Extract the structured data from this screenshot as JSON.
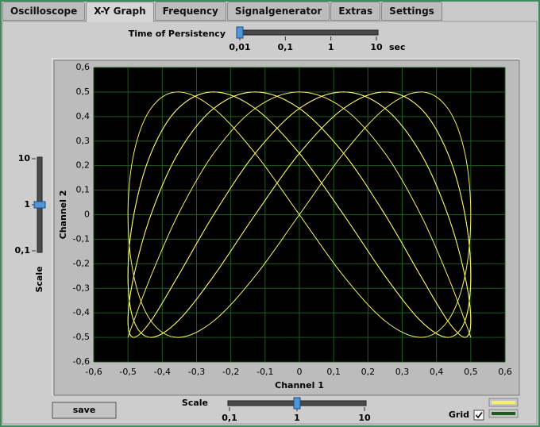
{
  "tabs": [
    {
      "label": "Oscilloscope",
      "selected": false
    },
    {
      "label": "X-Y Graph",
      "selected": true
    },
    {
      "label": "Frequency",
      "selected": false
    },
    {
      "label": "Signalgenerator",
      "selected": false
    },
    {
      "label": "Extras",
      "selected": false
    },
    {
      "label": "Settings",
      "selected": false
    }
  ],
  "persistency": {
    "label": "Time of Persistency",
    "unit": "sec",
    "value": 0.01,
    "min": 0.01,
    "max": 10,
    "log": true,
    "ticks": [
      {
        "value": 0.01,
        "label": "0,01"
      },
      {
        "value": 0.1,
        "label": "0,1"
      },
      1,
      10
    ]
  },
  "y_scale": {
    "label": "Scale",
    "value": 1,
    "min": 0.1,
    "max": 10,
    "log": true,
    "ticks": [
      10,
      1,
      {
        "value": 0.1,
        "label": "0,1"
      }
    ]
  },
  "x_scale": {
    "label": "Scale",
    "value": 1,
    "min": 0.1,
    "max": 10,
    "log": true,
    "ticks": [
      {
        "value": 0.1,
        "label": "0,1"
      },
      1,
      10
    ]
  },
  "save_button": "save",
  "grid_toggle": {
    "label": "Grid",
    "checked": true
  },
  "chart_data": {
    "type": "line",
    "x_label": "Channel 1",
    "y_label": "Channel 2",
    "color": "#f4f06a",
    "grid": true,
    "grid_color": "#1f5a1f",
    "background": "#000000",
    "xlim": [
      -0.6,
      0.6
    ],
    "ylim": [
      -0.6,
      0.6
    ],
    "xticks": [
      {
        "value": -0.6,
        "label": "-0,6"
      },
      {
        "value": -0.5,
        "label": "-0,5"
      },
      {
        "value": -0.4,
        "label": "-0,4"
      },
      {
        "value": -0.3,
        "label": "-0,3"
      },
      {
        "value": -0.2,
        "label": "-0,2"
      },
      {
        "value": -0.1,
        "label": "-0,1"
      },
      0,
      {
        "value": 0.1,
        "label": "0,1"
      },
      {
        "value": 0.2,
        "label": "0,2"
      },
      {
        "value": 0.3,
        "label": "0,3"
      },
      {
        "value": 0.4,
        "label": "0,4"
      },
      {
        "value": 0.5,
        "label": "0,5"
      },
      {
        "value": 0.6,
        "label": "0,6"
      }
    ],
    "yticks": [
      {
        "value": -0.6,
        "label": "-0,6"
      },
      {
        "value": -0.5,
        "label": "-0,5"
      },
      {
        "value": -0.4,
        "label": "-0,4"
      },
      {
        "value": -0.3,
        "label": "-0,3"
      },
      {
        "value": -0.2,
        "label": "-0,2"
      },
      {
        "value": -0.1,
        "label": "-0,1"
      },
      0,
      {
        "value": 0.1,
        "label": "0,1"
      },
      {
        "value": 0.2,
        "label": "0,2"
      },
      {
        "value": 0.3,
        "label": "0,3"
      },
      {
        "value": 0.4,
        "label": "0,4"
      },
      {
        "value": 0.5,
        "label": "0,5"
      },
      {
        "value": 0.6,
        "label": "0,6"
      }
    ],
    "x": [
      0,
      0.129,
      0.25,
      0.354,
      0.433,
      0.483,
      0.5,
      0.483,
      0.433,
      0.354,
      0.25,
      0.129,
      0,
      -0.129,
      -0.25,
      -0.354,
      -0.433,
      -0.483,
      -0.5,
      -0.483,
      -0.433,
      -0.354,
      -0.25,
      -0.129
    ],
    "series": [
      {
        "values": [
          0,
          0.25,
          0.433,
          0.5,
          0.433,
          0.25,
          0,
          -0.25,
          -0.433,
          -0.5,
          -0.433,
          -0.25,
          0,
          0.25,
          0.433,
          0.5,
          0.433,
          0.25,
          0,
          -0.25,
          -0.433,
          -0.5,
          -0.433,
          -0.25
        ]
      },
      {
        "values": [
          0.25,
          0.433,
          0.5,
          0.433,
          0.25,
          0,
          -0.25,
          -0.433,
          -0.5,
          -0.433,
          -0.25,
          0,
          0.25,
          0.433,
          0.5,
          0.433,
          0.25,
          0,
          -0.25,
          -0.433,
          -0.5,
          -0.433,
          -0.25,
          0
        ]
      },
      {
        "values": [
          0.433,
          0.5,
          0.433,
          0.25,
          0,
          -0.25,
          -0.433,
          -0.5,
          -0.433,
          -0.25,
          0,
          0.25,
          0.433,
          0.5,
          0.433,
          0.25,
          0,
          -0.25,
          -0.433,
          -0.5,
          -0.433,
          -0.25,
          0,
          0.25
        ]
      },
      {
        "values": [
          0.5,
          0.433,
          0.25,
          0,
          -0.25,
          -0.433,
          -0.5,
          -0.433,
          -0.25,
          0,
          0.25,
          0.433,
          0.5,
          0.433,
          0.25,
          0,
          -0.25,
          -0.433,
          -0.5,
          -0.433,
          -0.25,
          0,
          0.25,
          0.433
        ]
      },
      {
        "values": [
          0.433,
          0.25,
          0,
          -0.25,
          -0.433,
          -0.5,
          -0.433,
          -0.25,
          0,
          0.25,
          0.433,
          0.5,
          0.433,
          0.25,
          0,
          -0.25,
          -0.433,
          -0.5,
          -0.433,
          -0.25,
          0,
          0.25,
          0.433,
          0.5
        ]
      },
      {
        "values": [
          0.25,
          0,
          -0.25,
          -0.433,
          -0.5,
          -0.433,
          -0.25,
          0,
          0.25,
          0.433,
          0.5,
          0.433,
          0.25,
          0,
          -0.25,
          -0.433,
          -0.5,
          -0.433,
          -0.25,
          0,
          0.25,
          0.433,
          0.5,
          0.433
        ]
      }
    ]
  }
}
